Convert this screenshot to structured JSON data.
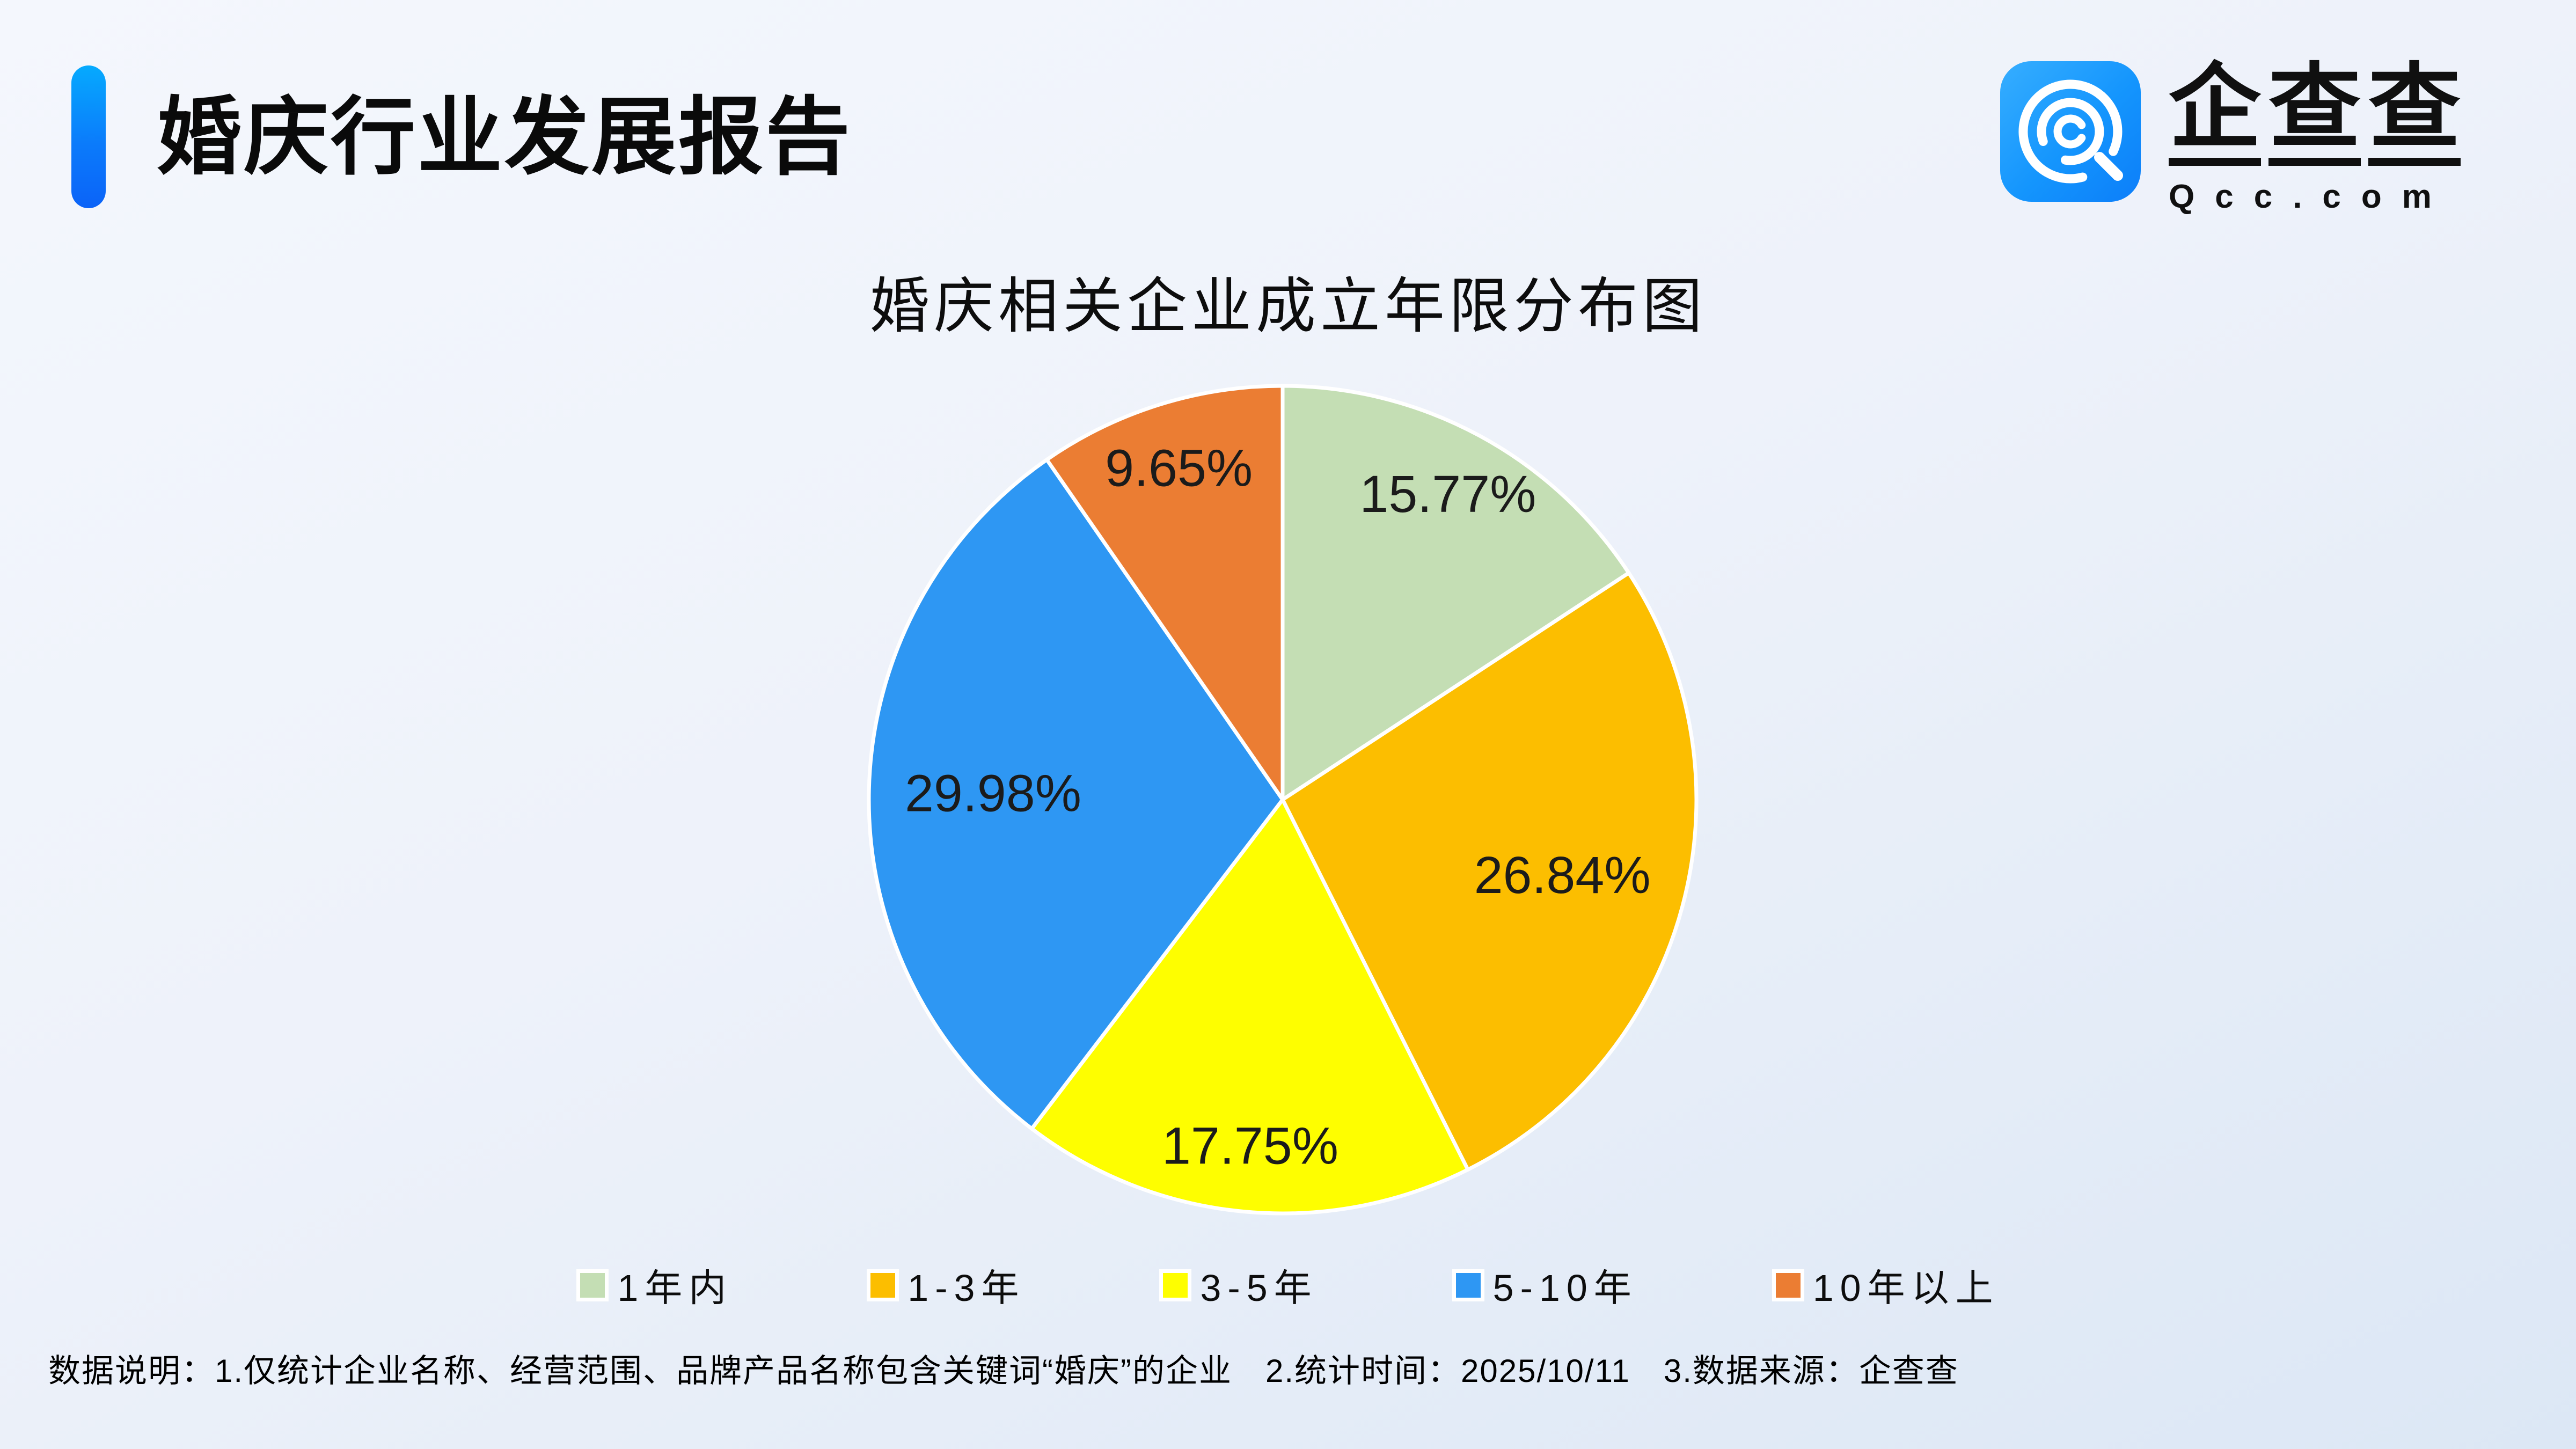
{
  "page": {
    "title": "婚庆行业发展报告",
    "note": "数据说明：1.仅统计企业名称、经营范围、品牌产品名称包含关键词“婚庆”的企业　2.统计时间：2025/10/11　3.数据来源：企查查"
  },
  "logo": {
    "name_chars": [
      "企",
      "查",
      "查"
    ],
    "domain": "Qcc.com",
    "icon_color": "#1495fd"
  },
  "chart_data": {
    "type": "pie",
    "title": "婚庆相关企业成立年限分布图",
    "unit": "%",
    "start_angle_deg": 0,
    "direction": "clockwise",
    "legend_position": "bottom",
    "labels": "inside",
    "slice_border_color": "#ffffff",
    "label_color": "#1b1b1b",
    "series": [
      {
        "label": "1年内",
        "value": 15.77,
        "color": "#C4DEB4"
      },
      {
        "label": "1-3年",
        "value": 26.84,
        "color": "#FCBE00"
      },
      {
        "label": "3-5年",
        "value": 17.75,
        "color": "#FEFE00"
      },
      {
        "label": "5-10年",
        "value": 29.98,
        "color": "#2E97F3"
      },
      {
        "label": "10年以上",
        "value": 9.65,
        "color": "#EB7D33"
      }
    ]
  }
}
